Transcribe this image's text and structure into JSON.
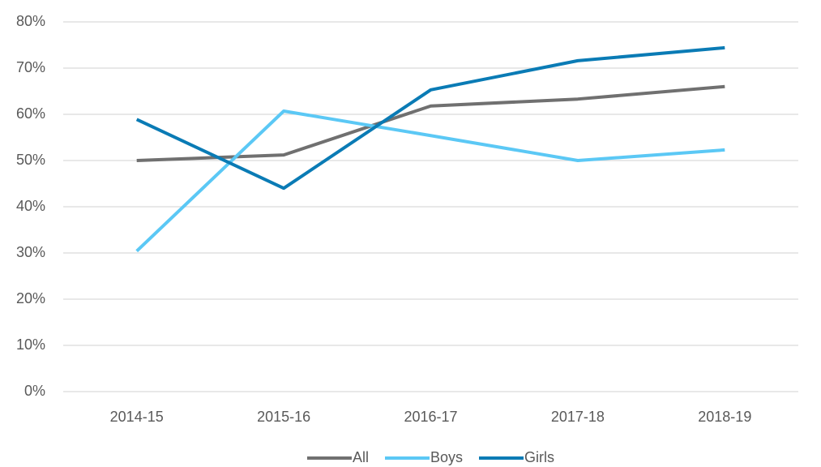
{
  "chart_data": {
    "type": "line",
    "categories": [
      "2014-15",
      "2015-16",
      "2016-17",
      "2017-18",
      "2018-19"
    ],
    "series": [
      {
        "name": "All",
        "color": "#707070",
        "values": [
          50.0,
          51.2,
          61.8,
          63.3,
          66.0
        ]
      },
      {
        "name": "Boys",
        "color": "#5bc8f5",
        "values": [
          30.4,
          60.7,
          55.4,
          50.0,
          52.3
        ]
      },
      {
        "name": "Girls",
        "color": "#0a7bb5",
        "values": [
          58.9,
          44.0,
          65.3,
          71.6,
          74.4
        ]
      }
    ],
    "ylim": [
      0,
      80
    ],
    "yticks": [
      {
        "value": 0,
        "label": "0%"
      },
      {
        "value": 10,
        "label": "10%"
      },
      {
        "value": 20,
        "label": "20%"
      },
      {
        "value": 30,
        "label": "30%"
      },
      {
        "value": 40,
        "label": "40%"
      },
      {
        "value": 50,
        "label": "50%"
      },
      {
        "value": 60,
        "label": "60%"
      },
      {
        "value": 70,
        "label": "70%"
      },
      {
        "value": 80,
        "label": "80%"
      }
    ],
    "grid": true,
    "legend": "bottom"
  }
}
